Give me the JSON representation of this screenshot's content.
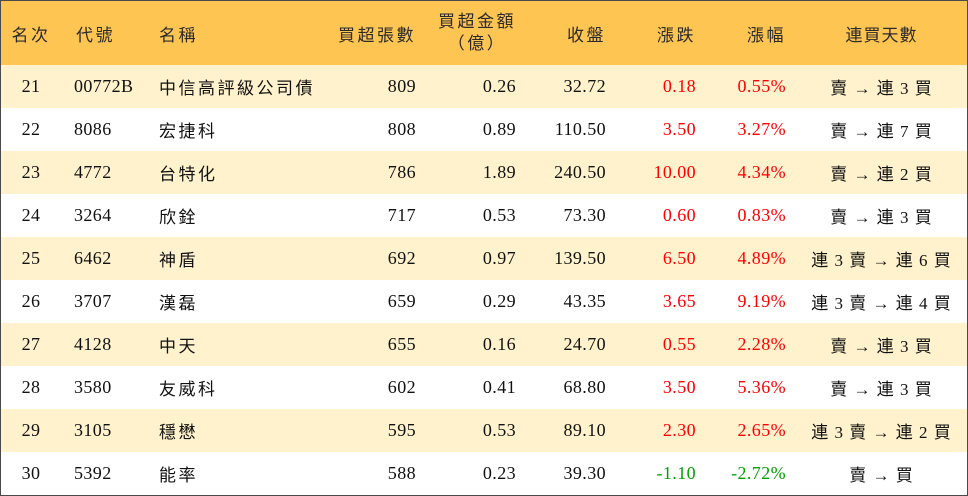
{
  "colors": {
    "header_bg": "#FFC552",
    "stripe_bg": "#FFF2CC",
    "row_bg": "#FFFFFF",
    "border": "#4a4a4a",
    "up": "#FF0000",
    "down": "#00A000"
  },
  "header": {
    "rank": "名次",
    "code": "代號",
    "name": "名稱",
    "net_buy_lots": "買超張數",
    "net_buy_amount": "買超金額",
    "net_buy_amount_unit": "（億）",
    "close": "收盤",
    "change": "漲跌",
    "change_pct": "漲幅",
    "streak": "連買天數"
  },
  "rows": [
    {
      "rank": "21",
      "code": "00772B",
      "name": "中信高評級公司債",
      "net_buy_lots": "809",
      "net_buy_amount": "0.26",
      "close": "32.72",
      "change": "0.18",
      "change_pct": "0.55%",
      "streak": "賣 → 連 3 買"
    },
    {
      "rank": "22",
      "code": "8086",
      "name": "宏捷科",
      "net_buy_lots": "808",
      "net_buy_amount": "0.89",
      "close": "110.50",
      "change": "3.50",
      "change_pct": "3.27%",
      "streak": "賣 → 連 7 買"
    },
    {
      "rank": "23",
      "code": "4772",
      "name": "台特化",
      "net_buy_lots": "786",
      "net_buy_amount": "1.89",
      "close": "240.50",
      "change": "10.00",
      "change_pct": "4.34%",
      "streak": "賣 → 連 2 買"
    },
    {
      "rank": "24",
      "code": "3264",
      "name": "欣銓",
      "net_buy_lots": "717",
      "net_buy_amount": "0.53",
      "close": "73.30",
      "change": "0.60",
      "change_pct": "0.83%",
      "streak": "賣 → 連 3 買"
    },
    {
      "rank": "25",
      "code": "6462",
      "name": "神盾",
      "net_buy_lots": "692",
      "net_buy_amount": "0.97",
      "close": "139.50",
      "change": "6.50",
      "change_pct": "4.89%",
      "streak": "連 3 賣 → 連 6 買"
    },
    {
      "rank": "26",
      "code": "3707",
      "name": "漢磊",
      "net_buy_lots": "659",
      "net_buy_amount": "0.29",
      "close": "43.35",
      "change": "3.65",
      "change_pct": "9.19%",
      "streak": "連 3 賣 → 連 4 買"
    },
    {
      "rank": "27",
      "code": "4128",
      "name": "中天",
      "net_buy_lots": "655",
      "net_buy_amount": "0.16",
      "close": "24.70",
      "change": "0.55",
      "change_pct": "2.28%",
      "streak": "賣 → 連 3 買"
    },
    {
      "rank": "28",
      "code": "3580",
      "name": "友威科",
      "net_buy_lots": "602",
      "net_buy_amount": "0.41",
      "close": "68.80",
      "change": "3.50",
      "change_pct": "5.36%",
      "streak": "賣 → 連 3 買"
    },
    {
      "rank": "29",
      "code": "3105",
      "name": "穩懋",
      "net_buy_lots": "595",
      "net_buy_amount": "0.53",
      "close": "89.10",
      "change": "2.30",
      "change_pct": "2.65%",
      "streak": "連 3 賣 → 連 2 買"
    },
    {
      "rank": "30",
      "code": "5392",
      "name": "能率",
      "net_buy_lots": "588",
      "net_buy_amount": "0.23",
      "close": "39.30",
      "change": "-1.10",
      "change_pct": "-2.72%",
      "streak": "賣 → 買"
    }
  ]
}
